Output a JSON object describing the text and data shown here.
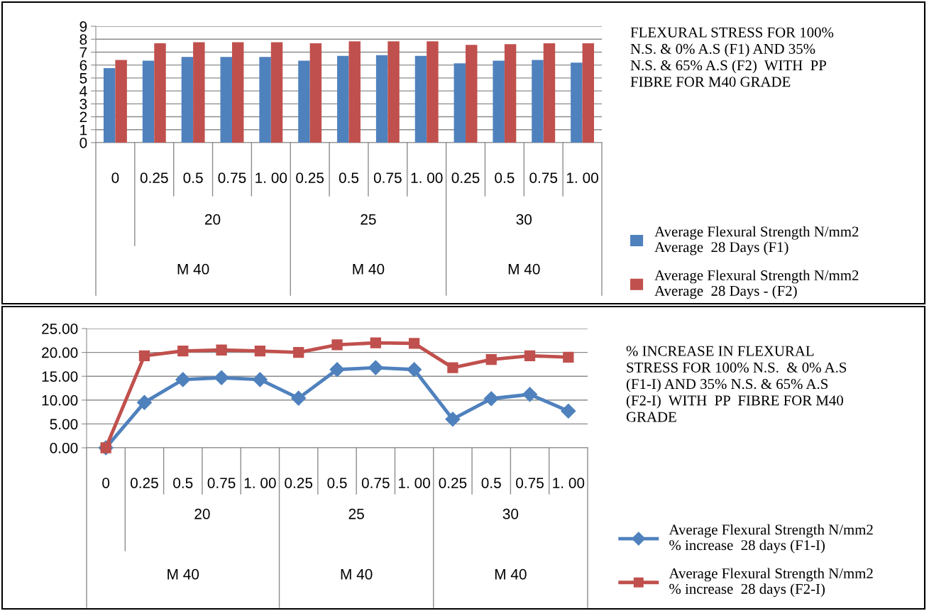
{
  "chart_data": [
    {
      "type": "bar",
      "categories": [
        "0",
        "0.25",
        "0.5",
        "0.75",
        "1. 00",
        "0.25",
        "0.5",
        "0.75",
        "1. 00",
        "0.25",
        "0.5",
        "0.75",
        "1. 00"
      ],
      "annotations": [
        "FLEXURAL STRESS FOR 100%\nN.S. & 0% A.S (F1) AND 35%\nN.S. & 65% A.S (F2)  WITH  PP\nFIBRE FOR M40 GRADE",
        "20",
        "25",
        "30",
        "M 40",
        "M 40",
        "M 40"
      ],
      "series": [
        {
          "name": "Average Flexural Strength N/mm2\nAverage  28 Days (F1)",
          "color": "#4f81bd",
          "values": [
            5.76,
            6.34,
            6.62,
            6.62,
            6.62,
            6.34,
            6.71,
            6.77,
            6.71,
            6.13,
            6.34,
            6.4,
            6.19
          ]
        },
        {
          "name": "Average Flexural Strength N/mm2\nAverage  28 Days - (F2)",
          "color": "#c0504d",
          "values": [
            6.4,
            7.68,
            7.77,
            7.77,
            7.77,
            7.68,
            7.84,
            7.84,
            7.84,
            7.56,
            7.62,
            7.68,
            7.68
          ]
        }
      ],
      "ylim": [
        0,
        9
      ],
      "yticks": [
        0,
        1,
        2,
        3,
        4,
        5,
        6,
        7,
        8,
        9
      ],
      "grid": "y",
      "legend": "right"
    },
    {
      "type": "line",
      "categories": [
        "0",
        "0.25",
        "0.5",
        "0.75",
        "1. 00",
        "0.25",
        "0.5",
        "0.75",
        "1. 00",
        "0.25",
        "0.5",
        "0.75",
        "1. 00"
      ],
      "annotations": [
        "% INCREASE IN FLEXURAL\nSTRESS FOR 100% N.S.  & 0% A.S\n(F1-I) AND 35% N.S. & 65% A.S\n(F2-I)  WITH  PP  FIBRE FOR M40\nGRADE",
        "20",
        "25",
        "30",
        "M 40",
        "M 40",
        "M 40"
      ],
      "series": [
        {
          "name": "Average Flexural Strength N/mm2\n% increase  28 days (F1-I)",
          "color": "#4f81bd",
          "marker": "diamond",
          "values": [
            0,
            9.5,
            14.3,
            14.7,
            14.3,
            10.4,
            16.4,
            16.8,
            16.4,
            6.0,
            10.3,
            11.2,
            7.7
          ]
        },
        {
          "name": "Average Flexural Strength N/mm2\n% increase  28 days (F2-I)",
          "color": "#c0504d",
          "marker": "square",
          "values": [
            0,
            19.3,
            20.3,
            20.5,
            20.3,
            20.0,
            21.6,
            22.0,
            21.9,
            16.8,
            18.5,
            19.3,
            19.0
          ]
        }
      ],
      "ylim": [
        0,
        25
      ],
      "yticks": [
        {
          "value": 0,
          "label": "0.00"
        },
        {
          "value": 5,
          "label": "5.00"
        },
        {
          "value": 10,
          "label": "10.00"
        },
        {
          "value": 15,
          "label": "15.00"
        },
        {
          "value": 20,
          "label": "20.00"
        },
        {
          "value": 25,
          "label": "25.00"
        }
      ],
      "grid": "y",
      "legend": "right"
    }
  ]
}
